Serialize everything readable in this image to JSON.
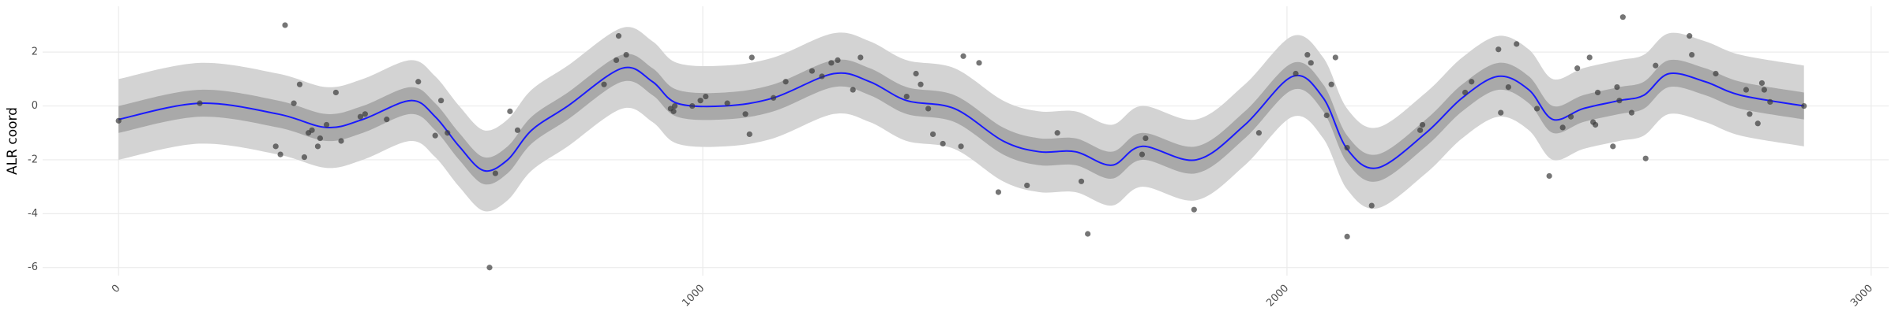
{
  "chart_data": {
    "type": "scatter",
    "y_label": "ALR coord",
    "xlim": [
      -130,
      3030
    ],
    "ylim": [
      -6.3,
      3.7
    ],
    "xticks": [
      0,
      1000,
      2000,
      3000
    ],
    "yticks": [
      -6,
      -4,
      -2,
      0,
      2
    ],
    "grid": true,
    "series": [
      {
        "mark": "band",
        "color": "#d3d3d3",
        "x": [
          0,
          139,
          273,
          356,
          418,
          500,
          542,
          583,
          625,
          666,
          707,
          769,
          862,
          914,
          956,
          1038,
          1121,
          1224,
          1286,
          1349,
          1431,
          1514,
          1576,
          1638,
          1700,
          1752,
          1845,
          1928,
          2010,
          2062,
          2103,
          2155,
          2238,
          2300,
          2362,
          2414,
          2455,
          2507,
          2569,
          2611,
          2654,
          2716,
          2776,
          2885
        ],
        "lower": [
          -2.0,
          -1.4,
          -1.8,
          -2.3,
          -2.0,
          -1.3,
          -1.9,
          -3.0,
          -3.9,
          -3.5,
          -2.4,
          -1.5,
          -0.1,
          -0.6,
          -1.4,
          -1.5,
          -1.2,
          -0.3,
          -0.6,
          -1.3,
          -1.6,
          -2.8,
          -3.2,
          -3.2,
          -3.7,
          -3.0,
          -3.5,
          -2.2,
          -0.4,
          -1.2,
          -3.1,
          -3.8,
          -2.5,
          -1.2,
          -0.4,
          -0.9,
          -2.0,
          -1.6,
          -1.3,
          -1.1,
          -0.3,
          -0.6,
          -1.1,
          -1.5
        ],
        "upper": [
          1.0,
          1.6,
          1.2,
          0.7,
          1.0,
          1.7,
          1.1,
          0.0,
          -0.9,
          -0.5,
          0.6,
          1.5,
          2.9,
          2.4,
          1.6,
          1.5,
          1.8,
          2.7,
          2.4,
          1.7,
          1.4,
          0.2,
          -0.2,
          -0.2,
          -0.7,
          0.0,
          -0.5,
          0.8,
          2.6,
          1.8,
          -0.1,
          -0.8,
          0.5,
          1.8,
          2.6,
          2.1,
          1.0,
          1.4,
          1.7,
          1.9,
          2.7,
          2.4,
          1.9,
          1.5
        ]
      },
      {
        "mark": "band",
        "color": "#a9a9a9",
        "x": [
          0,
          139,
          273,
          356,
          418,
          500,
          542,
          583,
          625,
          666,
          707,
          769,
          862,
          914,
          956,
          1038,
          1121,
          1224,
          1286,
          1349,
          1431,
          1514,
          1576,
          1638,
          1700,
          1752,
          1845,
          1928,
          2010,
          2062,
          2103,
          2155,
          2238,
          2300,
          2362,
          2414,
          2455,
          2507,
          2569,
          2611,
          2654,
          2716,
          2776,
          2885
        ],
        "lower": [
          -1.0,
          -0.4,
          -0.8,
          -1.3,
          -1.0,
          -0.3,
          -0.9,
          -2.0,
          -2.9,
          -2.5,
          -1.4,
          -0.5,
          0.9,
          0.4,
          -0.4,
          -0.5,
          -0.2,
          0.7,
          0.4,
          -0.3,
          -0.6,
          -1.8,
          -2.2,
          -2.2,
          -2.7,
          -2.0,
          -2.5,
          -1.2,
          0.6,
          -0.2,
          -2.1,
          -2.8,
          -1.5,
          -0.2,
          0.6,
          0.1,
          -1.0,
          -0.6,
          -0.3,
          -0.1,
          0.7,
          0.4,
          -0.1,
          -0.5
        ],
        "upper": [
          0.0,
          0.6,
          0.2,
          -0.3,
          0.0,
          0.7,
          0.1,
          -1.0,
          -1.9,
          -1.5,
          -0.4,
          0.5,
          1.9,
          1.4,
          0.6,
          0.5,
          0.8,
          1.7,
          1.4,
          0.7,
          0.4,
          -0.8,
          -1.2,
          -1.2,
          -1.7,
          -1.0,
          -1.5,
          -0.2,
          1.6,
          0.8,
          -1.1,
          -1.8,
          -0.5,
          0.8,
          1.6,
          1.1,
          0.0,
          0.4,
          0.7,
          0.9,
          1.7,
          1.4,
          0.9,
          0.5
        ]
      },
      {
        "mark": "line",
        "color": "#1a1aff",
        "x": [
          0,
          139,
          273,
          356,
          418,
          500,
          542,
          583,
          625,
          666,
          707,
          769,
          862,
          914,
          956,
          1038,
          1121,
          1224,
          1286,
          1349,
          1431,
          1514,
          1576,
          1638,
          1700,
          1752,
          1845,
          1928,
          2010,
          2062,
          2103,
          2155,
          2238,
          2300,
          2362,
          2414,
          2455,
          2507,
          2569,
          2611,
          2654,
          2716,
          2776,
          2885
        ],
        "values": [
          -0.5,
          0.1,
          -0.3,
          -0.8,
          -0.5,
          0.2,
          -0.4,
          -1.5,
          -2.4,
          -2.0,
          -0.9,
          0.0,
          1.4,
          0.9,
          0.1,
          0.0,
          0.3,
          1.2,
          0.9,
          0.2,
          -0.1,
          -1.3,
          -1.7,
          -1.7,
          -2.2,
          -1.5,
          -2.0,
          -0.7,
          1.1,
          0.3,
          -1.6,
          -2.3,
          -1.0,
          0.3,
          1.1,
          0.6,
          -0.5,
          -0.1,
          0.2,
          0.4,
          1.2,
          0.9,
          0.4,
          0.0
        ]
      },
      {
        "mark": "points",
        "color": "#3a3a3a",
        "x": [
          0,
          139,
          285,
          300,
          310,
          269,
          277,
          318,
          325,
          331,
          341,
          345,
          356,
          372,
          381,
          414,
          422,
          459,
          513,
          542,
          552,
          563,
          635,
          645,
          670,
          683,
          831,
          852,
          856,
          869,
          945,
          950,
          952,
          982,
          996,
          1005,
          1042,
          1073,
          1080,
          1084,
          1121,
          1142,
          1187,
          1204,
          1220,
          1231,
          1257,
          1270,
          1349,
          1365,
          1373,
          1386,
          1394,
          1411,
          1442,
          1446,
          1473,
          1506,
          1555,
          1607,
          1648,
          1659,
          1752,
          1758,
          1841,
          1952,
          2015,
          2035,
          2041,
          2068,
          2076,
          2083,
          2103,
          2103,
          2145,
          2228,
          2232,
          2305,
          2316,
          2362,
          2366,
          2379,
          2393,
          2428,
          2449,
          2472,
          2486,
          2497,
          2518,
          2524,
          2528,
          2532,
          2558,
          2565,
          2569,
          2575,
          2590,
          2614,
          2631,
          2689,
          2693,
          2734,
          2786,
          2792,
          2806,
          2813,
          2817,
          2827,
          2885
        ],
        "values": [
          -0.55,
          0.1,
          3.0,
          0.1,
          0.8,
          -1.5,
          -1.8,
          -1.9,
          -1.0,
          -0.9,
          -1.5,
          -1.2,
          -0.7,
          0.5,
          -1.3,
          -0.4,
          -0.3,
          -0.5,
          0.9,
          -1.1,
          0.2,
          -1.0,
          -6.0,
          -2.5,
          -0.2,
          -0.9,
          0.8,
          1.7,
          2.6,
          1.9,
          -0.1,
          -0.2,
          0.0,
          0.0,
          0.2,
          0.35,
          0.1,
          -0.3,
          -1.05,
          1.8,
          0.3,
          0.9,
          1.3,
          1.1,
          1.6,
          1.7,
          0.6,
          1.8,
          0.35,
          1.2,
          0.8,
          -0.1,
          -1.05,
          -1.4,
          -1.5,
          1.85,
          1.6,
          -3.2,
          -2.95,
          -1.0,
          -2.8,
          -4.75,
          -1.8,
          -1.2,
          -3.85,
          -1.0,
          1.2,
          1.9,
          1.6,
          -0.35,
          0.8,
          1.8,
          -1.55,
          -4.85,
          -3.7,
          -0.9,
          -0.7,
          0.5,
          0.9,
          2.1,
          -0.25,
          0.7,
          2.3,
          -0.1,
          -2.6,
          -0.8,
          -0.4,
          1.4,
          1.8,
          -0.6,
          -0.7,
          0.5,
          -1.5,
          0.7,
          0.2,
          3.3,
          -0.25,
          -1.95,
          1.5,
          2.6,
          1.9,
          1.2,
          0.6,
          -0.3,
          -0.65,
          0.85,
          0.6,
          0.15,
          0.0
        ]
      }
    ]
  }
}
